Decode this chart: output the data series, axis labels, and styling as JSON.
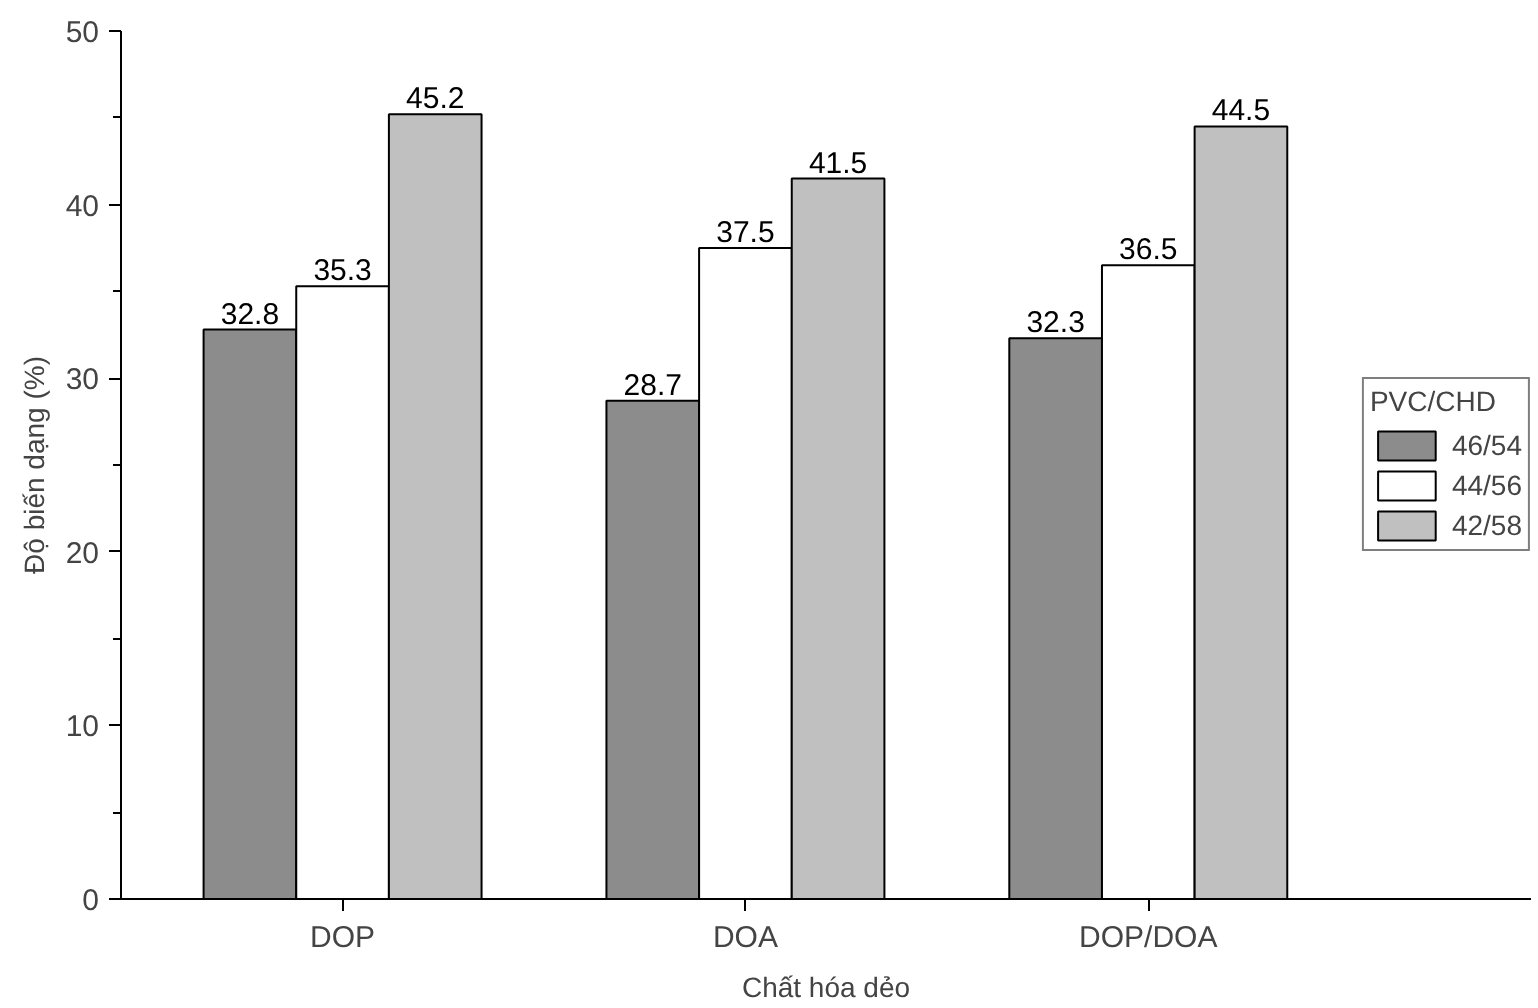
{
  "chart_data": {
    "type": "bar",
    "xlabel": "Chất hóa dẻo",
    "ylabel": "Độ biến dạng (%)",
    "legend_title": "PVC/CHD",
    "categories": [
      "DOP",
      "DOA",
      "DOP/DOA"
    ],
    "series": [
      {
        "name": "46/54",
        "color": "#8c8c8c",
        "values": [
          32.8,
          28.7,
          32.3
        ]
      },
      {
        "name": "44/56",
        "color": "#ffffff",
        "values": [
          35.3,
          37.5,
          36.5
        ]
      },
      {
        "name": "42/58",
        "color": "#c0c0c0",
        "values": [
          45.2,
          41.5,
          44.5
        ]
      }
    ],
    "ylim": [
      0,
      50
    ],
    "yticks": [
      0,
      10,
      20,
      30,
      40,
      50
    ],
    "grid": false,
    "legend": "right",
    "data_labels": true
  }
}
